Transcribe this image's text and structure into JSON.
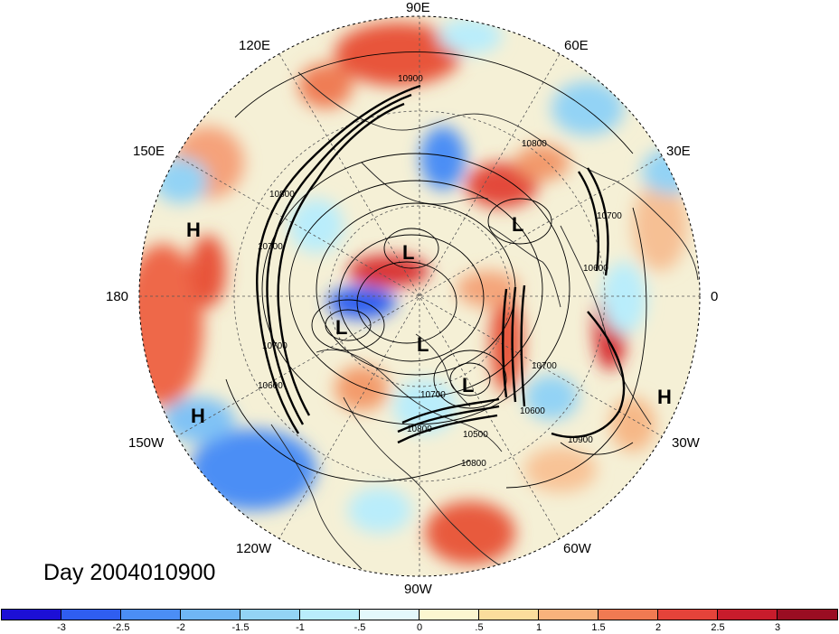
{
  "title": "Day 2004010900",
  "longitude_labels": {
    "e90": "90E",
    "e60": "60E",
    "e30": "30E",
    "zero": "0",
    "w30": "30W",
    "w60": "60W",
    "w90": "90W",
    "w120": "120W",
    "w150": "150W",
    "e180": "180",
    "e150": "150E",
    "e120": "120E"
  },
  "pressure_centers": [
    "H",
    "H",
    "H",
    "L",
    "L",
    "L",
    "L",
    "L"
  ],
  "contour_labels": [
    "10900",
    "10800",
    "10800",
    "10700",
    "10700",
    "10600",
    "10500",
    "10900",
    "10800",
    "10700",
    "10700",
    "10600",
    "10600",
    "10700",
    "10800"
  ],
  "colorbar": {
    "ticks": [
      "-3",
      "-2.5",
      "-2",
      "-1.5",
      "-1",
      "-.5",
      "0",
      ".5",
      "1",
      "1.5",
      "2",
      "2.5",
      "3"
    ],
    "colors": [
      "#1c0fd6",
      "#2f5ef0",
      "#4b8ef5",
      "#6fb6f5",
      "#93d3f5",
      "#b9edfb",
      "#e4f8fc",
      "#fcf6d0",
      "#fbdd9c",
      "#f8b27c",
      "#f07a52",
      "#e5433a",
      "#c81c2c",
      "#9a0d22"
    ]
  }
}
